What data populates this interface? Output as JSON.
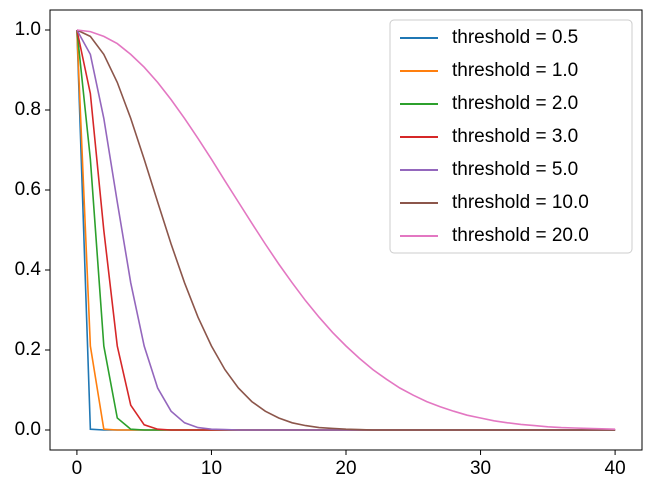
{
  "chart_data": {
    "type": "line",
    "x": [
      0,
      1,
      2,
      3,
      4,
      5,
      6,
      7,
      8,
      9,
      10,
      11,
      12,
      13,
      14,
      15,
      16,
      17,
      18,
      19,
      20,
      21,
      22,
      23,
      24,
      25,
      26,
      27,
      28,
      29,
      30,
      31,
      32,
      33,
      34,
      35,
      36,
      37,
      38,
      39,
      40
    ],
    "series": [
      {
        "name": "threshold = 0.5",
        "color": "#1f77b4",
        "values": [
          1,
          0.002,
          0,
          0,
          0,
          0,
          0,
          0,
          0,
          0,
          0,
          0,
          0,
          0,
          0,
          0,
          0,
          0,
          0,
          0,
          0,
          0,
          0,
          0,
          0,
          0,
          0,
          0,
          0,
          0,
          0,
          0,
          0,
          0,
          0,
          0,
          0,
          0,
          0,
          0,
          0
        ]
      },
      {
        "name": "threshold = 1.0",
        "color": "#ff7f0e",
        "values": [
          1,
          0.21,
          0.002,
          0,
          0,
          0,
          0,
          0,
          0,
          0,
          0,
          0,
          0,
          0,
          0,
          0,
          0,
          0,
          0,
          0,
          0,
          0,
          0,
          0,
          0,
          0,
          0,
          0,
          0,
          0,
          0,
          0,
          0,
          0,
          0,
          0,
          0,
          0,
          0,
          0,
          0
        ]
      },
      {
        "name": "threshold = 2.0",
        "color": "#2ca02c",
        "values": [
          1,
          0.677,
          0.21,
          0.03,
          0.002,
          0,
          0,
          0,
          0,
          0,
          0,
          0,
          0,
          0,
          0,
          0,
          0,
          0,
          0,
          0,
          0,
          0,
          0,
          0,
          0,
          0,
          0,
          0,
          0,
          0,
          0,
          0,
          0,
          0,
          0,
          0,
          0,
          0,
          0,
          0,
          0
        ]
      },
      {
        "name": "threshold = 3.0",
        "color": "#d62728",
        "values": [
          1,
          0.841,
          0.499,
          0.21,
          0.062,
          0.013,
          0.002,
          0,
          0,
          0,
          0,
          0,
          0,
          0,
          0,
          0,
          0,
          0,
          0,
          0,
          0,
          0,
          0,
          0,
          0,
          0,
          0,
          0,
          0,
          0,
          0,
          0,
          0,
          0,
          0,
          0,
          0,
          0,
          0,
          0,
          0
        ]
      },
      {
        "name": "threshold = 5.0",
        "color": "#9467bd",
        "values": [
          1,
          0.939,
          0.779,
          0.57,
          0.368,
          0.21,
          0.105,
          0.047,
          0.018,
          0.006,
          0.002,
          0.001,
          0,
          0,
          0,
          0,
          0,
          0,
          0,
          0,
          0,
          0,
          0,
          0,
          0,
          0,
          0,
          0,
          0,
          0,
          0,
          0,
          0,
          0,
          0,
          0,
          0,
          0,
          0,
          0,
          0
        ]
      },
      {
        "name": "threshold = 10.0",
        "color": "#8c564b",
        "values": [
          1,
          0.984,
          0.939,
          0.869,
          0.779,
          0.677,
          0.57,
          0.465,
          0.368,
          0.282,
          0.21,
          0.151,
          0.105,
          0.071,
          0.047,
          0.03,
          0.018,
          0.011,
          0.006,
          0.004,
          0.002,
          0.001,
          0,
          0,
          0,
          0,
          0,
          0,
          0,
          0,
          0,
          0,
          0,
          0,
          0,
          0,
          0,
          0,
          0,
          0,
          0
        ]
      },
      {
        "name": "threshold = 20.0",
        "color": "#e377c2",
        "values": [
          1,
          0.996,
          0.984,
          0.966,
          0.939,
          0.907,
          0.869,
          0.826,
          0.779,
          0.729,
          0.677,
          0.623,
          0.57,
          0.517,
          0.465,
          0.415,
          0.368,
          0.323,
          0.282,
          0.244,
          0.21,
          0.179,
          0.151,
          0.127,
          0.105,
          0.087,
          0.071,
          0.058,
          0.047,
          0.037,
          0.03,
          0.023,
          0.018,
          0.014,
          0.011,
          0.008,
          0.006,
          0.005,
          0.004,
          0.003,
          0.002
        ]
      }
    ],
    "xlim": [
      -2,
      42
    ],
    "xticks": [
      0,
      10,
      20,
      30,
      40
    ],
    "ylim": [
      -0.05,
      1.05
    ],
    "yticks": [
      {
        "value": 0,
        "label": "0.0"
      },
      0.2,
      0.4,
      0.6,
      0.8,
      {
        "value": 1,
        "label": "1.0"
      }
    ],
    "legend": "upper right"
  }
}
